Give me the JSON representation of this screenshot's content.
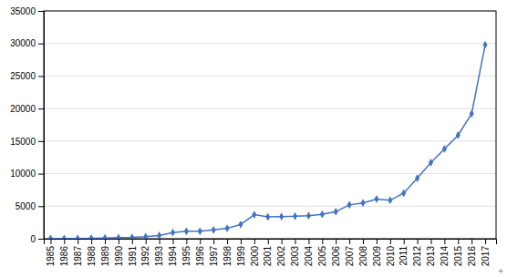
{
  "chart_data": {
    "type": "line",
    "x": [
      1985,
      1986,
      1987,
      1988,
      1989,
      1990,
      1991,
      1992,
      1993,
      1994,
      1995,
      1996,
      1997,
      1998,
      1999,
      2000,
      2001,
      2002,
      2003,
      2004,
      2005,
      2006,
      2007,
      2008,
      2009,
      2010,
      2011,
      2012,
      2013,
      2014,
      2015,
      2016,
      2017
    ],
    "values": [
      20,
      30,
      50,
      80,
      120,
      160,
      200,
      300,
      500,
      950,
      1150,
      1150,
      1350,
      1600,
      2200,
      3700,
      3350,
      3400,
      3450,
      3550,
      3750,
      4150,
      5200,
      5500,
      6100,
      5900,
      7000,
      9300,
      11700,
      13800,
      15900,
      19200,
      29800
    ],
    "color": "#4472C4",
    "marker": "diamond",
    "xlim": [
      1984.5,
      2017.8
    ],
    "xticks": [
      1985,
      1986,
      1987,
      1988,
      1989,
      1990,
      1991,
      1992,
      1993,
      1994,
      1995,
      1996,
      1997,
      1998,
      1999,
      2000,
      2001,
      2002,
      2003,
      2004,
      2005,
      2006,
      2007,
      2008,
      2009,
      2010,
      2011,
      2012,
      2013,
      2014,
      2015,
      2016,
      2017
    ],
    "ylim": [
      0,
      35000
    ],
    "yticks": [
      0,
      5000,
      10000,
      15000,
      20000,
      25000,
      30000,
      35000
    ],
    "grid": true,
    "annotation": "+"
  }
}
